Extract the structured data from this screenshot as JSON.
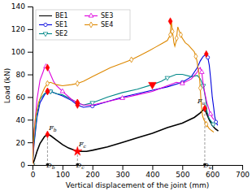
{
  "chart_data": {
    "type": "line",
    "xlabel": "Vertical displacement of the joint (mm)",
    "ylabel": "Load (kN)",
    "xlim": [
      0,
      700
    ],
    "ylim": [
      0,
      140
    ],
    "xticks": [
      0,
      100,
      200,
      300,
      400,
      500,
      600,
      700
    ],
    "yticks": [
      0,
      20,
      40,
      60,
      80,
      100,
      120,
      140
    ],
    "grid": false,
    "legend": "upper left",
    "series": [
      {
        "name": "BE1",
        "color": "#000000",
        "marker": "none",
        "line_style": "solid",
        "x": [
          0,
          3,
          8,
          15,
          25,
          40,
          50,
          60,
          80,
          100,
          120,
          150,
          180,
          200,
          250,
          300,
          350,
          400,
          450,
          500,
          540,
          560,
          575,
          580,
          590,
          600,
          610,
          620
        ],
        "values": [
          0,
          2,
          6,
          12,
          19,
          25,
          27,
          26,
          22,
          18,
          15,
          12,
          12,
          13,
          16,
          20,
          24,
          28,
          33,
          37,
          42,
          46,
          50,
          46,
          40,
          35,
          32,
          30
        ]
      },
      {
        "name": "SE1",
        "color": "#0000dd",
        "marker": "circle",
        "line_style": "solid",
        "x": [
          0,
          5,
          15,
          25,
          40,
          50,
          60,
          80,
          100,
          130,
          150,
          170,
          200,
          250,
          300,
          350,
          400,
          450,
          500,
          530,
          550,
          560,
          570,
          580,
          585,
          590,
          595,
          600,
          605,
          608,
          612,
          618
        ],
        "values": [
          0,
          18,
          42,
          55,
          62,
          65,
          65,
          63,
          61,
          57,
          53,
          51,
          52,
          56,
          60,
          63,
          66,
          69,
          73,
          78,
          86,
          92,
          96,
          98,
          95,
          88,
          75,
          60,
          50,
          43,
          38,
          35
        ]
      },
      {
        "name": "SE2",
        "color": "#008888",
        "marker": "triangle-down",
        "line_style": "solid",
        "x": [
          0,
          5,
          15,
          25,
          40,
          50,
          60,
          80,
          100,
          130,
          150,
          170,
          200,
          250,
          300,
          350,
          400,
          430,
          450,
          480,
          500,
          530,
          550,
          560,
          570,
          578,
          582,
          588,
          592,
          598,
          603,
          608
        ],
        "values": [
          0,
          20,
          45,
          58,
          63,
          65,
          65,
          63,
          62,
          58,
          55,
          53,
          55,
          60,
          64,
          67,
          71,
          74,
          77,
          80,
          80,
          78,
          79,
          76,
          70,
          58,
          48,
          42,
          40,
          38,
          36,
          35
        ]
      },
      {
        "name": "SE3",
        "color": "#dd00dd",
        "marker": "triangle-up",
        "line_style": "solid",
        "x": [
          0,
          5,
          15,
          25,
          35,
          40,
          45,
          50,
          55,
          60,
          70,
          80,
          100,
          130,
          150,
          170,
          200,
          250,
          300,
          350,
          400,
          430,
          450,
          480,
          500,
          530,
          540,
          550,
          555,
          560,
          565,
          568,
          572,
          578,
          582,
          588,
          594,
          600,
          606
        ],
        "values": [
          0,
          28,
          58,
          75,
          82,
          86,
          87,
          86,
          83,
          80,
          74,
          70,
          65,
          58,
          55,
          53,
          53,
          56,
          59,
          62,
          65,
          68,
          70,
          73,
          72,
          76,
          79,
          82,
          85,
          86,
          82,
          75,
          68,
          60,
          55,
          50,
          45,
          42,
          40
        ]
      },
      {
        "name": "SE4",
        "color": "#dd8800",
        "marker": "diamond",
        "line_style": "solid",
        "x": [
          0,
          5,
          10,
          20,
          30,
          40,
          50,
          60,
          70,
          80,
          100,
          130,
          150,
          170,
          200,
          230,
          260,
          300,
          330,
          360,
          390,
          410,
          430,
          450,
          460,
          461,
          462,
          463,
          464,
          465,
          467,
          470,
          472,
          475,
          478,
          480,
          481,
          482,
          483,
          484,
          485,
          490,
          495,
          500,
          510,
          520,
          530,
          540,
          545,
          548,
          550,
          552,
          555,
          558,
          560,
          562,
          565,
          568,
          572,
          576,
          580,
          585,
          590,
          595,
          600,
          605
        ],
        "values": [
          0,
          30,
          42,
          55,
          62,
          68,
          72,
          73,
          72,
          71,
          70,
          71,
          72,
          74,
          78,
          82,
          86,
          90,
          93,
          97,
          101,
          104,
          107,
          110,
          115,
          120,
          124,
          127,
          126,
          123,
          118,
          112,
          108,
          105,
          108,
          110,
          112,
          115,
          118,
          120,
          122,
          118,
          115,
          112,
          108,
          106,
          103,
          100,
          96,
          93,
          90,
          86,
          82,
          75,
          68,
          58,
          48,
          43,
          40,
          38,
          36,
          34,
          32,
          31,
          30,
          29
        ]
      }
    ],
    "key_points": {
      "color": "#ff0000",
      "x": [
        50,
        150,
        575,
        50,
        150,
        580,
        50,
        150,
        400,
        50,
        150,
        460
      ],
      "y": [
        27,
        12,
        50,
        65,
        53,
        98,
        65,
        55,
        71,
        86,
        55,
        127
      ],
      "marker": [
        "diamond",
        "star",
        "diamond",
        "diamond",
        "diamond",
        "diamond",
        "diamond",
        "diamond",
        "triangle-down",
        "diamond",
        "diamond",
        "diamond"
      ]
    },
    "vlines": {
      "color": "#808080",
      "line_style": "dashed",
      "x": [
        50,
        150,
        575
      ],
      "y0": [
        0,
        0,
        0
      ],
      "y1": [
        27,
        12,
        50
      ]
    },
    "baseline_points": {
      "color": "#000000",
      "marker": "square",
      "x": [
        50,
        150,
        575
      ],
      "y": [
        0,
        0,
        0
      ]
    },
    "annotations": [
      {
        "x": 52,
        "y": 30,
        "text": "Fb"
      },
      {
        "x": 152,
        "y": 16,
        "text": "Fc"
      },
      {
        "x": 548,
        "y": 54,
        "text": "Fu"
      },
      {
        "x": 44,
        "y": -3,
        "text": "Db"
      },
      {
        "x": 143,
        "y": -3,
        "text": "Dc"
      },
      {
        "x": 568,
        "y": -3,
        "text": "Du"
      }
    ]
  }
}
